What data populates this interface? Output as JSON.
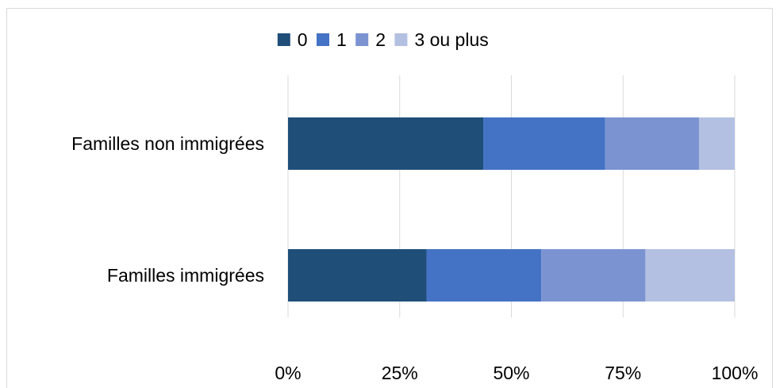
{
  "chart_data": {
    "type": "bar",
    "orientation": "horizontal",
    "stacked": true,
    "percent_stacked": true,
    "categories": [
      "Familles non immigrées",
      "Familles immigrées"
    ],
    "series": [
      {
        "name": "0",
        "values": [
          43.7,
          31.0
        ],
        "color": "#1f4e79"
      },
      {
        "name": "1",
        "values": [
          27.3,
          25.7
        ],
        "color": "#4472c4"
      },
      {
        "name": "2",
        "values": [
          21.0,
          23.3
        ],
        "color": "#7b93d1"
      },
      {
        "name": "3 ou plus",
        "values": [
          8.0,
          20.0
        ],
        "color": "#b4c0e2"
      }
    ],
    "xlim": [
      0,
      100
    ],
    "x_ticks": [
      "0%",
      "25%",
      "50%",
      "75%",
      "100%"
    ],
    "grid": "vertical",
    "legend_position": "top"
  }
}
